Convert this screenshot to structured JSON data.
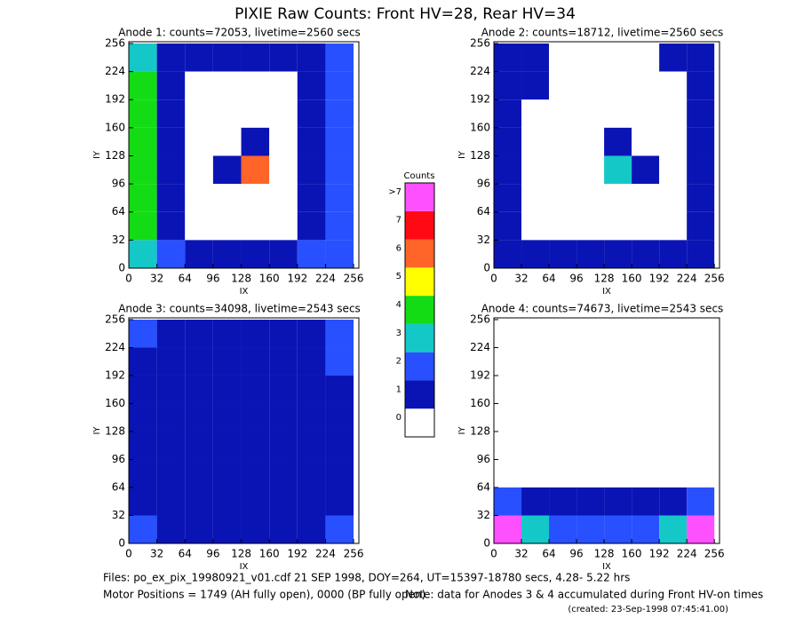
{
  "title": "PIXIE Raw Counts:  Front HV=28, Rear HV=34",
  "chart_data": [
    {
      "type": "heatmap",
      "title": "Anode 1: counts=72053, livetime=2560 secs",
      "x_label": "IX",
      "y_label": "IY",
      "xlim": [
        0,
        262
      ],
      "ylim": [
        0,
        258
      ],
      "xticks": [
        0,
        32,
        64,
        96,
        128,
        160,
        192,
        224,
        256
      ],
      "yticks": [
        0,
        32,
        64,
        96,
        128,
        160,
        192,
        224,
        256
      ],
      "z": [
        [
          3,
          1,
          1,
          1,
          1,
          1,
          1,
          2
        ],
        [
          4,
          1,
          0,
          0,
          0,
          0,
          1,
          2
        ],
        [
          4,
          1,
          0,
          0,
          0,
          0,
          1,
          2
        ],
        [
          4,
          1,
          0,
          0,
          1,
          0,
          1,
          2
        ],
        [
          4,
          1,
          0,
          1,
          6,
          0,
          1,
          2
        ],
        [
          4,
          1,
          0,
          0,
          0,
          0,
          1,
          2
        ],
        [
          4,
          1,
          0,
          0,
          0,
          0,
          1,
          2
        ],
        [
          3,
          2,
          1,
          1,
          1,
          1,
          2,
          2
        ]
      ]
    },
    {
      "type": "heatmap",
      "title": "Anode 2: counts=18712, livetime=2560 secs",
      "x_label": "IX",
      "y_label": "IY",
      "xlim": [
        0,
        262
      ],
      "ylim": [
        0,
        258
      ],
      "xticks": [
        0,
        32,
        64,
        96,
        128,
        160,
        192,
        224,
        256
      ],
      "yticks": [
        0,
        32,
        64,
        96,
        128,
        160,
        192,
        224,
        256
      ],
      "z": [
        [
          1,
          1,
          0,
          0,
          0,
          0,
          1,
          1
        ],
        [
          1,
          1,
          0,
          0,
          0,
          0,
          0,
          1
        ],
        [
          1,
          0,
          0,
          0,
          0,
          0,
          0,
          1
        ],
        [
          1,
          0,
          0,
          0,
          1,
          0,
          0,
          1
        ],
        [
          1,
          0,
          0,
          0,
          3,
          1,
          0,
          1
        ],
        [
          1,
          0,
          0,
          0,
          0,
          0,
          0,
          1
        ],
        [
          1,
          0,
          0,
          0,
          0,
          0,
          0,
          1
        ],
        [
          1,
          1,
          1,
          1,
          1,
          1,
          1,
          1
        ]
      ]
    },
    {
      "type": "heatmap",
      "title": "Anode 3: counts=34098, livetime=2543 secs",
      "x_label": "IX",
      "y_label": "IY",
      "xlim": [
        0,
        262
      ],
      "ylim": [
        0,
        258
      ],
      "xticks": [
        0,
        32,
        64,
        96,
        128,
        160,
        192,
        224,
        256
      ],
      "yticks": [
        0,
        32,
        64,
        96,
        128,
        160,
        192,
        224,
        256
      ],
      "z": [
        [
          2,
          1,
          1,
          1,
          1,
          1,
          1,
          2
        ],
        [
          1,
          1,
          1,
          1,
          1,
          1,
          1,
          2
        ],
        [
          1,
          1,
          1,
          1,
          1,
          1,
          1,
          1
        ],
        [
          1,
          1,
          1,
          1,
          1,
          1,
          1,
          1
        ],
        [
          1,
          1,
          1,
          1,
          1,
          1,
          1,
          1
        ],
        [
          1,
          1,
          1,
          1,
          1,
          1,
          1,
          1
        ],
        [
          1,
          1,
          1,
          1,
          1,
          1,
          1,
          1
        ],
        [
          2,
          1,
          1,
          1,
          1,
          1,
          1,
          2
        ]
      ]
    },
    {
      "type": "heatmap",
      "title": "Anode 4: counts=74673, livetime=2543 secs",
      "x_label": "IX",
      "y_label": "IY",
      "xlim": [
        0,
        262
      ],
      "ylim": [
        0,
        258
      ],
      "xticks": [
        0,
        32,
        64,
        96,
        128,
        160,
        192,
        224,
        256
      ],
      "yticks": [
        0,
        32,
        64,
        96,
        128,
        160,
        192,
        224,
        256
      ],
      "z": [
        [
          0,
          0,
          0,
          0,
          0,
          0,
          0,
          0
        ],
        [
          0,
          0,
          0,
          0,
          0,
          0,
          0,
          0
        ],
        [
          0,
          0,
          0,
          0,
          0,
          0,
          0,
          0
        ],
        [
          0,
          0,
          0,
          0,
          0,
          0,
          0,
          0
        ],
        [
          0,
          0,
          0,
          0,
          0,
          0,
          0,
          0
        ],
        [
          0,
          0,
          0,
          0,
          0,
          0,
          0,
          0
        ],
        [
          2,
          1,
          1,
          1,
          1,
          1,
          1,
          2
        ],
        [
          8,
          3,
          2,
          2,
          2,
          2,
          3,
          8
        ]
      ]
    }
  ],
  "colorbar": {
    "title": "Counts",
    "ticks": [
      0,
      1,
      2,
      3,
      4,
      5,
      6,
      7,
      {
        "value": 8,
        "label": ">7"
      }
    ],
    "colors": [
      "#ffffff",
      "#0a14b4",
      "#2850ff",
      "#14c8c8",
      "#14dc14",
      "#ffff00",
      "#ff6428",
      "#ff0a14",
      "#ff50ff"
    ]
  },
  "footer": {
    "files": "Files: po_ex_pix_19980921_v01.cdf    21 SEP 1998, DOY=264, UT=15397-18780 secs,  4.28- 5.22 hrs",
    "motor": "Motor Positions = 1749 (AH fully open), 0000 (BP fully open)",
    "note": "Note: data for Anodes 3 & 4 accumulated during Front HV-on times",
    "created": "(created: 23-Sep-1998 07:45:41.00)"
  }
}
